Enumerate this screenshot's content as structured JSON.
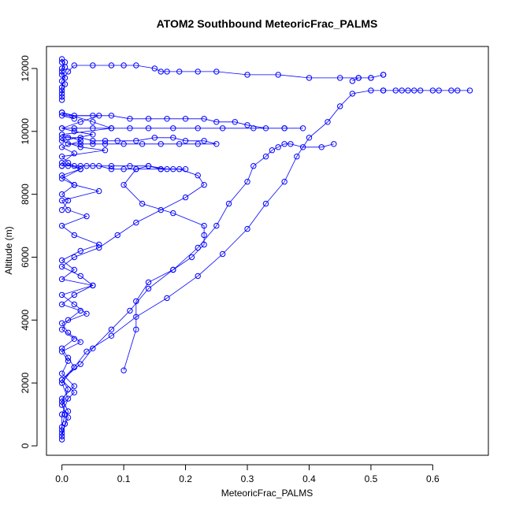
{
  "chart_data": {
    "type": "line",
    "title": "ATOM2 Southbound MeteoricFrac_PALMS",
    "xlabel": "MeteoricFrac_PALMS",
    "ylabel": "Altitude (m)",
    "xlim": [
      -0.025,
      0.69
    ],
    "ylim": [
      -300,
      12700
    ],
    "x_ticks": [
      0.0,
      0.1,
      0.2,
      0.3,
      0.4,
      0.5,
      0.6
    ],
    "x_tick_labels": [
      "0.0",
      "0.1",
      "0.2",
      "0.3",
      "0.4",
      "0.5",
      "0.6"
    ],
    "y_ticks": [
      0,
      2000,
      4000,
      6000,
      8000,
      10000,
      12000
    ],
    "y_tick_labels": [
      "0",
      "2000",
      "4000",
      "6000",
      "8000",
      "10000",
      "12000"
    ],
    "series_color": "#0000ff",
    "marker": "open-circle",
    "grid": false,
    "series": [
      {
        "x": [
          0.0,
          0.0,
          0.005,
          0.0,
          0.01,
          0.0,
          0.02,
          0.01,
          0.0,
          0.02,
          0.0,
          0.01,
          0.03,
          0.0,
          0.02,
          0.05,
          0.0,
          0.02,
          0.0,
          0.03,
          0.06,
          0.02,
          0.0,
          0.04,
          0.01,
          0.0,
          0.06,
          0.02,
          0.0,
          0.03,
          0.01,
          0.0,
          0.07,
          0.03,
          0.0,
          0.05,
          0.02,
          0.0,
          0.03,
          0.06,
          0.0,
          0.02,
          0.0,
          0.05,
          0.08,
          0.0,
          0.03,
          0.0,
          0.02,
          0.0,
          0.03,
          0.0,
          0.02,
          0.0,
          0.01,
          0.0
        ],
        "y": [
          200,
          600,
          1000,
          1400,
          1800,
          2100,
          2500,
          2800,
          3100,
          3400,
          3700,
          4000,
          4300,
          4500,
          4800,
          5100,
          5300,
          5600,
          5900,
          6200,
          6400,
          6700,
          7000,
          7300,
          7500,
          7800,
          8100,
          8300,
          8600,
          8800,
          9000,
          9200,
          9400,
          9500,
          9700,
          9900,
          10000,
          10100,
          10300,
          10500,
          10500,
          10400,
          10600,
          10300,
          10100,
          9900,
          9700,
          9500,
          9300,
          9000,
          8800,
          8500,
          8300,
          8000,
          7800,
          7500
        ]
      },
      {
        "x": [
          0.0,
          0.005,
          0.01,
          0.0,
          0.02,
          0.0,
          0.01,
          0.0,
          0.03,
          0.01,
          0.0,
          0.04,
          0.02,
          0.0,
          0.05,
          0.03,
          0.0,
          0.02,
          0.06,
          0.09,
          0.12,
          0.16,
          0.2,
          0.23,
          0.22,
          0.19,
          0.16,
          0.12,
          0.1,
          0.13,
          0.18,
          0.23,
          0.23,
          0.23,
          0.21,
          0.18,
          0.14,
          0.12,
          0.12,
          0.1
        ],
        "y": [
          300,
          700,
          1100,
          1500,
          1900,
          2300,
          2700,
          3000,
          3300,
          3600,
          3900,
          4200,
          4500,
          4800,
          5100,
          5400,
          5700,
          6000,
          6300,
          6700,
          7100,
          7500,
          7900,
          8300,
          8600,
          8800,
          8800,
          8800,
          8300,
          7700,
          7400,
          7000,
          6700,
          6400,
          6000,
          5600,
          5200,
          4600,
          3700,
          2400
        ]
      },
      {
        "x": [
          0.0,
          0.01,
          0.0,
          0.02,
          0.0,
          0.03,
          0.05,
          0.08,
          0.11,
          0.14,
          0.18,
          0.22,
          0.25,
          0.27,
          0.3,
          0.31,
          0.33,
          0.34,
          0.35,
          0.36,
          0.37,
          0.39,
          0.42,
          0.44
        ],
        "y": [
          400,
          900,
          1300,
          1700,
          2100,
          2600,
          3100,
          3700,
          4300,
          5000,
          5600,
          6300,
          7000,
          7700,
          8400,
          8900,
          9200,
          9400,
          9500,
          9600,
          9600,
          9500,
          9500,
          9600
        ]
      },
      {
        "x": [
          0.0,
          0.0,
          0.01,
          0.0,
          0.02,
          0.04,
          0.08,
          0.12,
          0.17,
          0.22,
          0.26,
          0.3,
          0.33,
          0.36,
          0.38,
          0.4,
          0.43,
          0.45,
          0.47,
          0.5,
          0.52,
          0.55,
          0.57,
          0.6,
          0.63,
          0.66,
          0.64,
          0.61,
          0.58,
          0.56,
          0.54,
          0.52
        ],
        "y": [
          500,
          1000,
          1500,
          2000,
          2500,
          3000,
          3500,
          4100,
          4700,
          5400,
          6100,
          6900,
          7700,
          8400,
          9200,
          9800,
          10300,
          10800,
          11200,
          11300,
          11300,
          11300,
          11300,
          11300,
          11300,
          11300,
          11300,
          11300,
          11300,
          11300,
          11300,
          11300
        ]
      },
      {
        "x": [
          0.0,
          0.0,
          0.0,
          0.01,
          0.02,
          0.05,
          0.08,
          0.1,
          0.12,
          0.15,
          0.16,
          0.17,
          0.19,
          0.22,
          0.25,
          0.3,
          0.35,
          0.4,
          0.45,
          0.48,
          0.5,
          0.52,
          0.52,
          0.5,
          0.48,
          0.47
        ],
        "y": [
          11000,
          11300,
          11600,
          11900,
          12100,
          12100,
          12100,
          12100,
          12100,
          12000,
          11900,
          11900,
          11900,
          11900,
          11900,
          11800,
          11800,
          11700,
          11700,
          11700,
          11700,
          11800,
          11800,
          11700,
          11700,
          11600
        ]
      },
      {
        "x": [
          0.0,
          0.02,
          0.05,
          0.08,
          0.11,
          0.14,
          0.17,
          0.2,
          0.23,
          0.25,
          0.28,
          0.3,
          0.33,
          0.36,
          0.39,
          0.36,
          0.31,
          0.26,
          0.22,
          0.18,
          0.14,
          0.11,
          0.08,
          0.05,
          0.02,
          0.0
        ],
        "y": [
          10600,
          10500,
          10500,
          10500,
          10400,
          10400,
          10400,
          10400,
          10400,
          10300,
          10300,
          10200,
          10100,
          10100,
          10100,
          10100,
          10100,
          10100,
          10100,
          10100,
          10100,
          10100,
          10100,
          10100,
          10100,
          10100
        ]
      },
      {
        "x": [
          0.0,
          0.01,
          0.03,
          0.05,
          0.07,
          0.09,
          0.12,
          0.15,
          0.18,
          0.2,
          0.23,
          0.25,
          0.22,
          0.19,
          0.16,
          0.13,
          0.1,
          0.07,
          0.05,
          0.03,
          0.01
        ],
        "y": [
          9800,
          9800,
          9800,
          9700,
          9700,
          9700,
          9700,
          9800,
          9800,
          9700,
          9700,
          9600,
          9600,
          9600,
          9600,
          9600,
          9600,
          9600,
          9600,
          9600,
          9600
        ]
      },
      {
        "x": [
          0.0,
          0.02,
          0.04,
          0.06,
          0.08,
          0.1,
          0.12,
          0.14,
          0.16,
          0.18,
          0.2,
          0.17,
          0.14,
          0.11,
          0.08,
          0.05,
          0.03,
          0.01,
          0.0
        ],
        "y": [
          8900,
          8900,
          8900,
          8900,
          8800,
          8800,
          8800,
          8900,
          8800,
          8800,
          8800,
          8800,
          8900,
          8900,
          8900,
          8900,
          8900,
          8900,
          8900
        ]
      },
      {
        "x": [
          0.0,
          0.0,
          0.005,
          0.0,
          0.005,
          0.0,
          0.0,
          0.005,
          0.0,
          0.0,
          0.005,
          0.0
        ],
        "y": [
          11100,
          11400,
          11700,
          11900,
          12050,
          12200,
          12300,
          12200,
          12000,
          11800,
          11500,
          11200
        ]
      }
    ]
  }
}
